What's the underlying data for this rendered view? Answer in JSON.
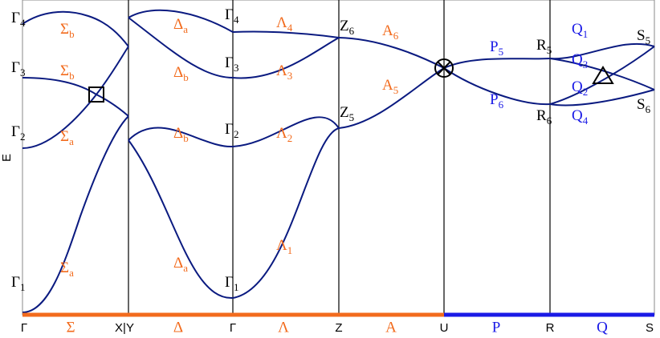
{
  "axis_label": "E",
  "point_labels": [
    {
      "base": "Γ",
      "sub": "4"
    },
    {
      "base": "Γ",
      "sub": "3"
    },
    {
      "base": "Γ",
      "sub": "2"
    },
    {
      "base": "Γ",
      "sub": "1"
    },
    {
      "base": "Γ",
      "sub": "4"
    },
    {
      "base": "Γ",
      "sub": "3"
    },
    {
      "base": "Γ",
      "sub": "2"
    },
    {
      "base": "Γ",
      "sub": "1"
    },
    {
      "base": "Z",
      "sub": "6"
    },
    {
      "base": "Z",
      "sub": "5"
    },
    {
      "base": "R",
      "sub": "5"
    },
    {
      "base": "R",
      "sub": "6"
    },
    {
      "base": "S",
      "sub": "5"
    },
    {
      "base": "S",
      "sub": "6"
    }
  ],
  "branch_labels": [
    {
      "base": "Σ",
      "sub": "b"
    },
    {
      "base": "Σ",
      "sub": "b"
    },
    {
      "base": "Σ",
      "sub": "a"
    },
    {
      "base": "Σ",
      "sub": "a"
    },
    {
      "base": "Δ",
      "sub": "a"
    },
    {
      "base": "Δ",
      "sub": "b"
    },
    {
      "base": "Δ",
      "sub": "b"
    },
    {
      "base": "Δ",
      "sub": "a"
    },
    {
      "base": "Λ",
      "sub": "4"
    },
    {
      "base": "Λ",
      "sub": "3"
    },
    {
      "base": "Λ",
      "sub": "2"
    },
    {
      "base": "Λ",
      "sub": "1"
    },
    {
      "base": "A",
      "sub": "6"
    },
    {
      "base": "A",
      "sub": "5"
    },
    {
      "base": "P",
      "sub": "5"
    },
    {
      "base": "P",
      "sub": "6"
    },
    {
      "base": "Q",
      "sub": "1"
    },
    {
      "base": "Q",
      "sub": "3"
    },
    {
      "base": "Q",
      "sub": "2"
    },
    {
      "base": "Q",
      "sub": "4"
    }
  ],
  "path_labels": [
    "Γ",
    "Σ",
    "X|Y",
    "Δ",
    "Γ",
    "Λ",
    "Z",
    "A",
    "U",
    "P",
    "R",
    "Q",
    "S"
  ]
}
